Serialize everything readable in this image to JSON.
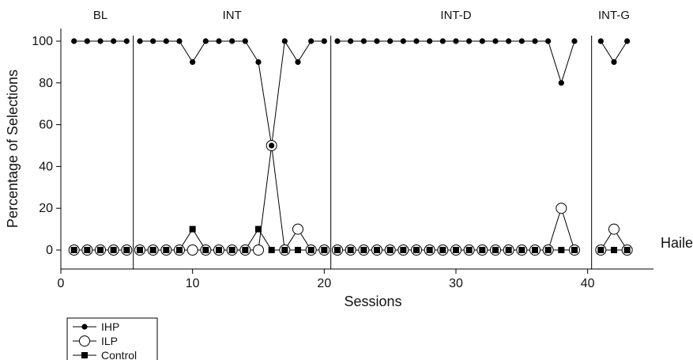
{
  "chart_data": {
    "type": "line",
    "xlabel": "Sessions",
    "ylabel": "Percentage of Selections",
    "xlim": [
      0,
      45
    ],
    "ylim": [
      0,
      100
    ],
    "xticks": [
      0,
      10,
      20,
      30,
      40
    ],
    "yticks": [
      0,
      20,
      40,
      60,
      80,
      100
    ],
    "participant": "Hailey",
    "phases": [
      {
        "label": "BL",
        "start": 1,
        "end": 5
      },
      {
        "label": "INT",
        "start": 6,
        "end": 20
      },
      {
        "label": "INT-D",
        "start": 21,
        "end": 39
      },
      {
        "label": "INT-G",
        "start": 41,
        "end": 43
      }
    ],
    "phase_change_lines": [
      5.5,
      20.5,
      40.3
    ],
    "series": [
      {
        "name": "IHP",
        "marker": "filled-circle",
        "points": [
          [
            1,
            100
          ],
          [
            2,
            100
          ],
          [
            3,
            100
          ],
          [
            4,
            100
          ],
          [
            5,
            100
          ],
          [
            6,
            100
          ],
          [
            7,
            100
          ],
          [
            8,
            100
          ],
          [
            9,
            100
          ],
          [
            10,
            90
          ],
          [
            11,
            100
          ],
          [
            12,
            100
          ],
          [
            13,
            100
          ],
          [
            14,
            100
          ],
          [
            15,
            90
          ],
          [
            16,
            50
          ],
          [
            17,
            100
          ],
          [
            18,
            90
          ],
          [
            19,
            100
          ],
          [
            20,
            100
          ],
          [
            21,
            100
          ],
          [
            22,
            100
          ],
          [
            23,
            100
          ],
          [
            24,
            100
          ],
          [
            25,
            100
          ],
          [
            26,
            100
          ],
          [
            27,
            100
          ],
          [
            28,
            100
          ],
          [
            29,
            100
          ],
          [
            30,
            100
          ],
          [
            31,
            100
          ],
          [
            32,
            100
          ],
          [
            33,
            100
          ],
          [
            34,
            100
          ],
          [
            35,
            100
          ],
          [
            36,
            100
          ],
          [
            37,
            100
          ],
          [
            38,
            80
          ],
          [
            39,
            100
          ],
          [
            41,
            100
          ],
          [
            42,
            90
          ],
          [
            43,
            100
          ]
        ]
      },
      {
        "name": "ILP",
        "marker": "open-circle",
        "points": [
          [
            1,
            0
          ],
          [
            2,
            0
          ],
          [
            3,
            0
          ],
          [
            4,
            0
          ],
          [
            5,
            0
          ],
          [
            6,
            0
          ],
          [
            7,
            0
          ],
          [
            8,
            0
          ],
          [
            9,
            0
          ],
          [
            10,
            0
          ],
          [
            11,
            0
          ],
          [
            12,
            0
          ],
          [
            13,
            0
          ],
          [
            14,
            0
          ],
          [
            15,
            0
          ],
          [
            16,
            50
          ],
          [
            17,
            0
          ],
          [
            18,
            10
          ],
          [
            19,
            0
          ],
          [
            20,
            0
          ],
          [
            21,
            0
          ],
          [
            22,
            0
          ],
          [
            23,
            0
          ],
          [
            24,
            0
          ],
          [
            25,
            0
          ],
          [
            26,
            0
          ],
          [
            27,
            0
          ],
          [
            28,
            0
          ],
          [
            29,
            0
          ],
          [
            30,
            0
          ],
          [
            31,
            0
          ],
          [
            32,
            0
          ],
          [
            33,
            0
          ],
          [
            34,
            0
          ],
          [
            35,
            0
          ],
          [
            36,
            0
          ],
          [
            37,
            0
          ],
          [
            38,
            20
          ],
          [
            39,
            0
          ],
          [
            41,
            0
          ],
          [
            42,
            10
          ],
          [
            43,
            0
          ]
        ]
      },
      {
        "name": "Control",
        "marker": "filled-square",
        "points": [
          [
            1,
            0
          ],
          [
            2,
            0
          ],
          [
            3,
            0
          ],
          [
            4,
            0
          ],
          [
            5,
            0
          ],
          [
            6,
            0
          ],
          [
            7,
            0
          ],
          [
            8,
            0
          ],
          [
            9,
            0
          ],
          [
            10,
            10
          ],
          [
            11,
            0
          ],
          [
            12,
            0
          ],
          [
            13,
            0
          ],
          [
            14,
            0
          ],
          [
            15,
            10
          ],
          [
            16,
            0
          ],
          [
            17,
            0
          ],
          [
            18,
            0
          ],
          [
            19,
            0
          ],
          [
            20,
            0
          ],
          [
            21,
            0
          ],
          [
            22,
            0
          ],
          [
            23,
            0
          ],
          [
            24,
            0
          ],
          [
            25,
            0
          ],
          [
            26,
            0
          ],
          [
            27,
            0
          ],
          [
            28,
            0
          ],
          [
            29,
            0
          ],
          [
            30,
            0
          ],
          [
            31,
            0
          ],
          [
            32,
            0
          ],
          [
            33,
            0
          ],
          [
            34,
            0
          ],
          [
            35,
            0
          ],
          [
            36,
            0
          ],
          [
            37,
            0
          ],
          [
            38,
            0
          ],
          [
            39,
            0
          ],
          [
            41,
            0
          ],
          [
            42,
            0
          ],
          [
            43,
            0
          ]
        ]
      }
    ],
    "legend": {
      "placement": "bottom-left"
    }
  }
}
